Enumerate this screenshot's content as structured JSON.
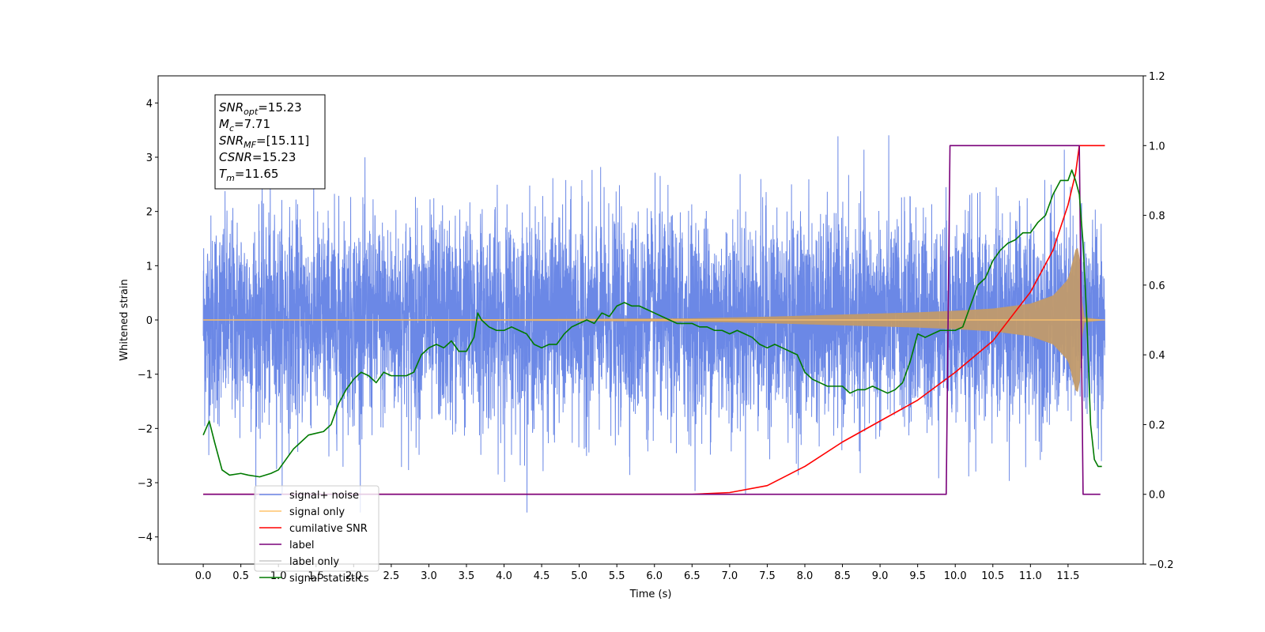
{
  "chart_data": {
    "type": "line",
    "title": "",
    "xlabel": "Time (s)",
    "ylabel": "Whitened strain",
    "y2label": "",
    "xlim": [
      -0.6,
      12.5
    ],
    "ylim": [
      -4.5,
      4.5
    ],
    "y2lim": [
      -0.2,
      1.2
    ],
    "grid": false,
    "legend_position": "lower-left",
    "x_ticks": [
      "0.0",
      "0.5",
      "1.0",
      "1.5",
      "2.0",
      "2.5",
      "3.0",
      "3.5",
      "4.0",
      "4.5",
      "5.0",
      "5.5",
      "6.0",
      "6.5",
      "7.0",
      "7.5",
      "8.0",
      "8.5",
      "9.0",
      "9.5",
      "10.0",
      "10.5",
      "11.0",
      "11.5"
    ],
    "y_ticks": [
      "−4",
      "−3",
      "−2",
      "−1",
      "0",
      "1",
      "2",
      "3",
      "4"
    ],
    "y2_ticks": [
      "−0.2",
      "0.0",
      "0.2",
      "0.4",
      "0.6",
      "0.8",
      "1.0",
      "1.2"
    ],
    "annotation": [
      {
        "base": "SNR",
        "sub": "opt",
        "rest": "=15.23"
      },
      {
        "base": "M",
        "sub": "c",
        "rest": "=7.71"
      },
      {
        "base": "SNR",
        "sub": "MF",
        "rest": "=[15.11]"
      },
      {
        "base": "CSNR",
        "sub": "",
        "rest": "=15.23"
      },
      {
        "base": "T",
        "sub": "m",
        "rest": "=11.65"
      }
    ],
    "series": [
      {
        "name": "signal+ noise",
        "axis": "left",
        "color": "#6b88e6",
        "noise_sigma": 0.95,
        "range": [
          -3.55,
          4.1
        ],
        "x_range": [
          0.0,
          11.99
        ]
      },
      {
        "name": "signal only",
        "axis": "left",
        "color": "#ffc46b",
        "envelope_x": [
          0.0,
          4.0,
          6.5,
          7.5,
          8.5,
          9.5,
          10.0,
          10.5,
          11.0,
          11.3,
          11.5,
          11.6,
          11.65,
          11.7,
          11.99
        ],
        "envelope_y": [
          0.01,
          0.015,
          0.03,
          0.06,
          0.1,
          0.14,
          0.17,
          0.21,
          0.3,
          0.45,
          0.75,
          1.3,
          1.35,
          0.05,
          0.0
        ]
      },
      {
        "name": "cumilative SNR",
        "axis": "right",
        "color": "#ff0000",
        "x": [
          0.0,
          6.5,
          7.0,
          7.5,
          8.0,
          8.5,
          9.0,
          9.5,
          10.0,
          10.5,
          11.0,
          11.3,
          11.5,
          11.6,
          11.65,
          11.99
        ],
        "y": [
          0.0,
          0.0,
          0.005,
          0.025,
          0.08,
          0.15,
          0.21,
          0.27,
          0.35,
          0.44,
          0.58,
          0.7,
          0.83,
          0.92,
          1.0,
          1.0
        ]
      },
      {
        "name": "label",
        "axis": "right",
        "color": "#7a007a",
        "x": [
          0.0,
          9.88,
          9.93,
          11.65,
          11.7,
          11.93
        ],
        "y": [
          0.0,
          0.0,
          1.0,
          1.0,
          0.0,
          0.0
        ]
      },
      {
        "name": "label only",
        "axis": "right",
        "color": "#c8c8c8"
      },
      {
        "name": "signal statistics",
        "axis": "right",
        "color": "#007a00",
        "x": [
          0.0,
          0.08,
          0.15,
          0.25,
          0.35,
          0.5,
          0.6,
          0.75,
          0.9,
          1.0,
          1.1,
          1.2,
          1.3,
          1.4,
          1.5,
          1.6,
          1.7,
          1.8,
          1.9,
          2.0,
          2.1,
          2.2,
          2.3,
          2.4,
          2.5,
          2.6,
          2.7,
          2.8,
          2.9,
          3.0,
          3.1,
          3.2,
          3.3,
          3.4,
          3.5,
          3.6,
          3.65,
          3.7,
          3.8,
          3.9,
          4.0,
          4.1,
          4.2,
          4.3,
          4.4,
          4.5,
          4.6,
          4.7,
          4.8,
          4.9,
          5.0,
          5.1,
          5.2,
          5.3,
          5.4,
          5.5,
          5.6,
          5.7,
          5.8,
          5.9,
          6.0,
          6.1,
          6.2,
          6.3,
          6.4,
          6.5,
          6.6,
          6.7,
          6.8,
          6.9,
          7.0,
          7.1,
          7.2,
          7.3,
          7.4,
          7.5,
          7.6,
          7.7,
          7.8,
          7.9,
          8.0,
          8.1,
          8.2,
          8.3,
          8.4,
          8.5,
          8.6,
          8.7,
          8.8,
          8.9,
          9.0,
          9.1,
          9.2,
          9.3,
          9.4,
          9.5,
          9.6,
          9.7,
          9.8,
          9.9,
          10.0,
          10.1,
          10.2,
          10.3,
          10.4,
          10.5,
          10.6,
          10.7,
          10.8,
          10.9,
          11.0,
          11.1,
          11.2,
          11.3,
          11.4,
          11.5,
          11.55,
          11.6,
          11.65,
          11.7,
          11.75,
          11.8,
          11.85,
          11.9,
          11.95
        ],
        "y": [
          0.17,
          0.21,
          0.15,
          0.07,
          0.055,
          0.06,
          0.055,
          0.05,
          0.06,
          0.07,
          0.1,
          0.13,
          0.15,
          0.17,
          0.175,
          0.18,
          0.2,
          0.26,
          0.3,
          0.33,
          0.35,
          0.34,
          0.32,
          0.35,
          0.34,
          0.34,
          0.34,
          0.35,
          0.4,
          0.42,
          0.43,
          0.42,
          0.44,
          0.41,
          0.41,
          0.45,
          0.52,
          0.5,
          0.48,
          0.47,
          0.47,
          0.48,
          0.47,
          0.46,
          0.43,
          0.42,
          0.43,
          0.43,
          0.46,
          0.48,
          0.49,
          0.5,
          0.49,
          0.52,
          0.51,
          0.54,
          0.55,
          0.54,
          0.54,
          0.53,
          0.52,
          0.51,
          0.5,
          0.49,
          0.49,
          0.49,
          0.48,
          0.48,
          0.47,
          0.47,
          0.46,
          0.47,
          0.46,
          0.45,
          0.43,
          0.42,
          0.43,
          0.42,
          0.41,
          0.4,
          0.35,
          0.33,
          0.32,
          0.31,
          0.31,
          0.31,
          0.29,
          0.3,
          0.3,
          0.31,
          0.3,
          0.29,
          0.3,
          0.32,
          0.38,
          0.46,
          0.45,
          0.46,
          0.47,
          0.47,
          0.47,
          0.48,
          0.54,
          0.6,
          0.62,
          0.67,
          0.7,
          0.72,
          0.73,
          0.75,
          0.75,
          0.78,
          0.8,
          0.86,
          0.9,
          0.9,
          0.93,
          0.9,
          0.86,
          0.72,
          0.5,
          0.2,
          0.1,
          0.08,
          0.08
        ]
      }
    ]
  }
}
